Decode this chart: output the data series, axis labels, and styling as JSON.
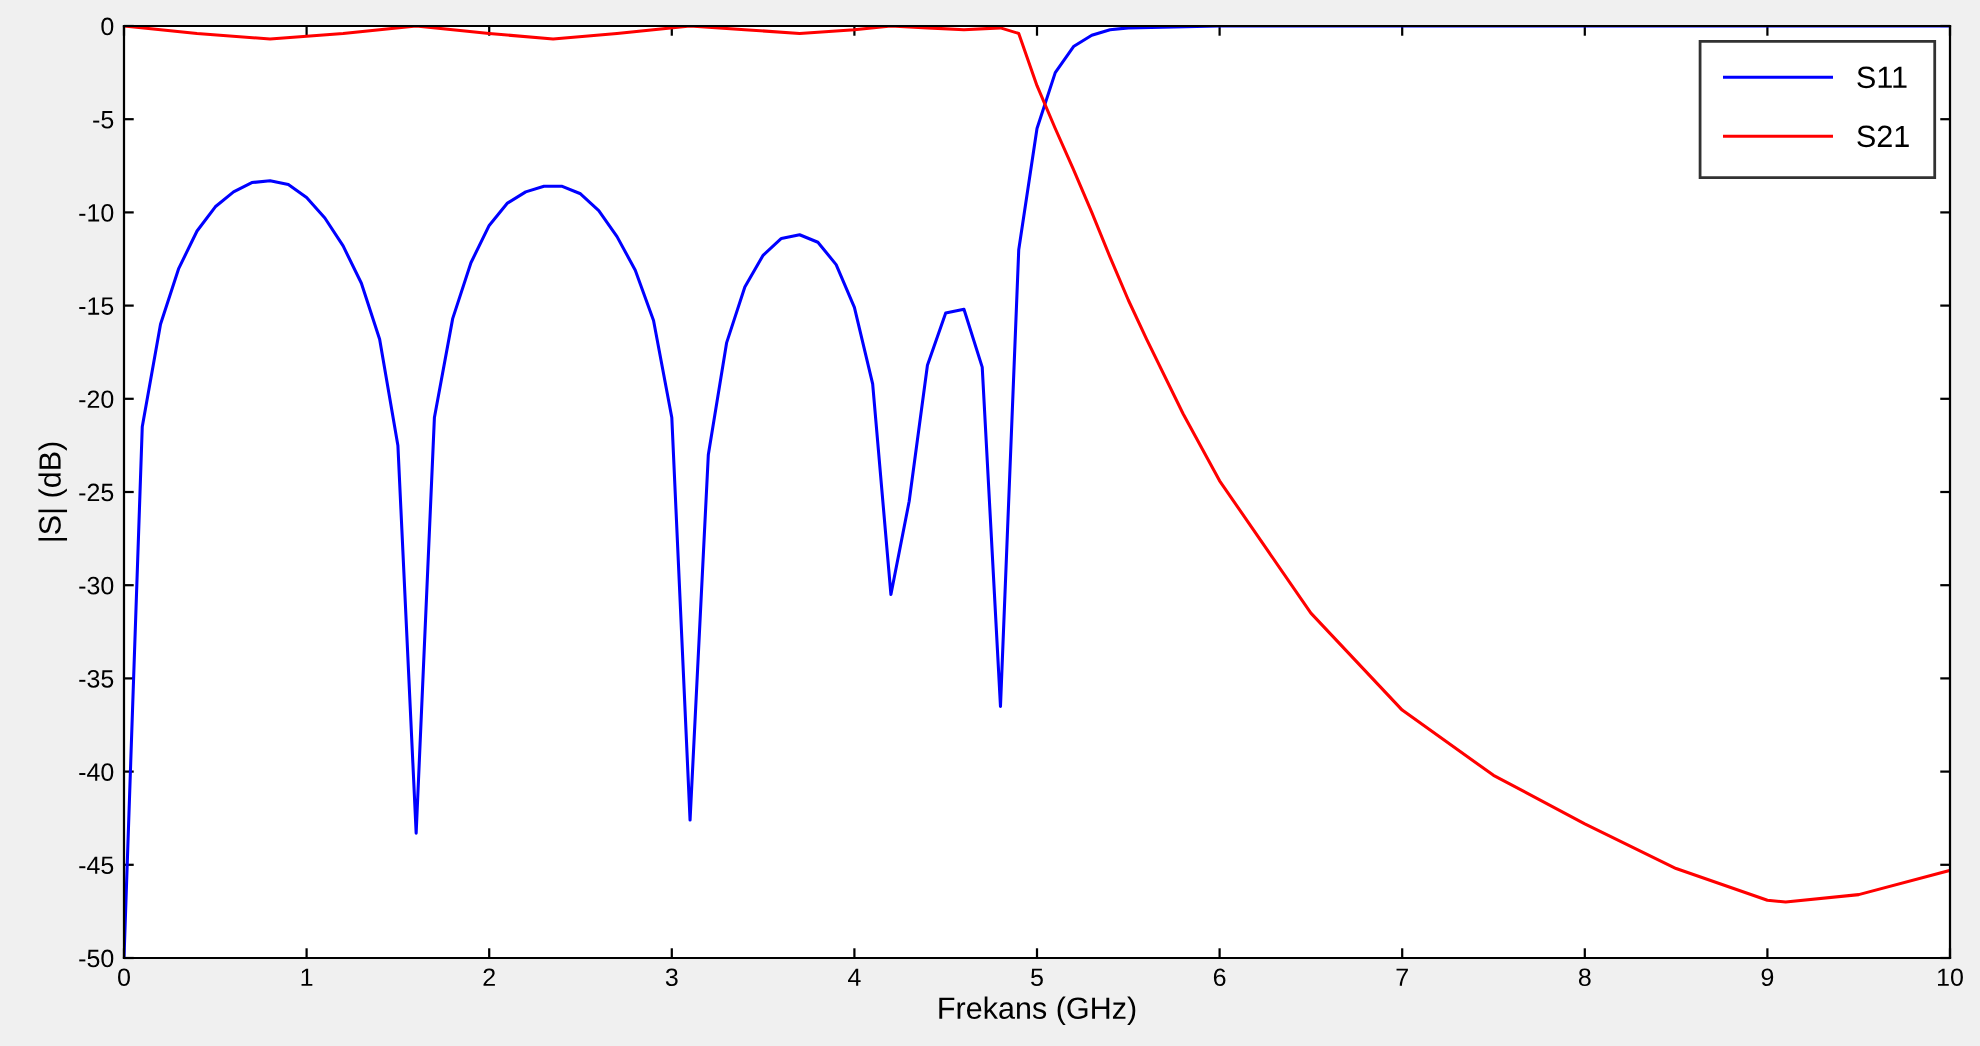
{
  "chart_data": {
    "type": "line",
    "xlabel": "Frekans (GHz)",
    "ylabel": "|S| (dB)",
    "xlim": [
      0,
      10
    ],
    "ylim": [
      -50,
      0
    ],
    "xticks": [
      0,
      1,
      2,
      3,
      4,
      5,
      6,
      7,
      8,
      9,
      10
    ],
    "yticks": [
      -50,
      -45,
      -40,
      -35,
      -30,
      -25,
      -20,
      -15,
      -10,
      -5,
      0
    ],
    "grid": false,
    "legend": "top right",
    "marker": "none",
    "line_style": "solid",
    "series": [
      {
        "name": "S11",
        "color": "#0000ff",
        "x": [
          0,
          0.1,
          0.2,
          0.3,
          0.4,
          0.5,
          0.6,
          0.7,
          0.8,
          0.9,
          1.0,
          1.1,
          1.2,
          1.3,
          1.4,
          1.5,
          1.6,
          1.7,
          1.8,
          1.9,
          2.0,
          2.1,
          2.2,
          2.3,
          2.4,
          2.5,
          2.6,
          2.7,
          2.8,
          2.9,
          3.0,
          3.1,
          3.2,
          3.3,
          3.4,
          3.5,
          3.6,
          3.7,
          3.8,
          3.9,
          4.0,
          4.1,
          4.2,
          4.3,
          4.4,
          4.5,
          4.6,
          4.7,
          4.8,
          4.9,
          5.0,
          5.1,
          5.2,
          5.3,
          5.4,
          5.5,
          6.0,
          10
        ],
        "values": [
          -50,
          -21.5,
          -16,
          -13,
          -11,
          -9.7,
          -8.9,
          -8.4,
          -8.3,
          -8.5,
          -9.2,
          -10.3,
          -11.8,
          -13.8,
          -16.8,
          -22.5,
          -43.3,
          -21,
          -15.7,
          -12.7,
          -10.7,
          -9.5,
          -8.9,
          -8.6,
          -8.6,
          -9.0,
          -9.9,
          -11.3,
          -13.1,
          -15.8,
          -21,
          -42.6,
          -23,
          -17,
          -14,
          -12.3,
          -11.4,
          -11.2,
          -11.6,
          -12.8,
          -15.1,
          -19.2,
          -30.5,
          -25.5,
          -18.2,
          -15.4,
          -15.2,
          -18.3,
          -36.5,
          -12,
          -5.5,
          -2.5,
          -1.1,
          -0.5,
          -0.2,
          -0.1,
          0,
          0
        ]
      },
      {
        "name": "S21",
        "color": "#ff0000",
        "x": [
          0,
          0.4,
          0.8,
          1.2,
          1.6,
          2.0,
          2.35,
          2.7,
          3.1,
          3.4,
          3.7,
          4.0,
          4.2,
          4.4,
          4.6,
          4.8,
          4.9,
          5.0,
          5.1,
          5.2,
          5.3,
          5.4,
          5.5,
          5.6,
          5.8,
          6.0,
          6.5,
          7.0,
          7.5,
          8.0,
          8.5,
          9.0,
          9.1,
          9.5,
          10
        ],
        "values": [
          0,
          -0.4,
          -0.7,
          -0.4,
          0,
          -0.4,
          -0.7,
          -0.4,
          0,
          -0.2,
          -0.4,
          -0.2,
          0,
          -0.1,
          -0.2,
          -0.1,
          -0.4,
          -3.2,
          -5.5,
          -7.7,
          -10,
          -12.4,
          -14.7,
          -16.8,
          -20.8,
          -24.4,
          -31.5,
          -36.7,
          -40.2,
          -42.8,
          -45.2,
          -46.9,
          -47,
          -46.6,
          -45.3
        ]
      }
    ]
  }
}
